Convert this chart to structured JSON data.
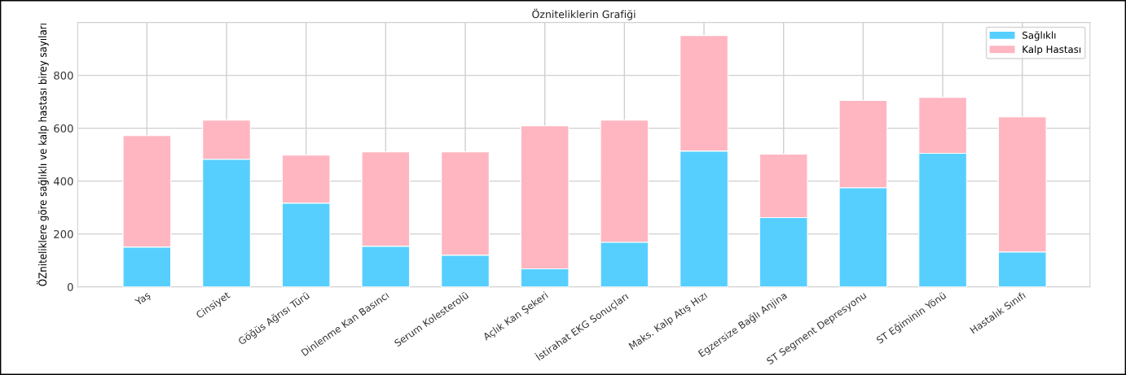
{
  "chart_data": {
    "type": "bar",
    "title": "Özniteliklerin Grafiği",
    "ylabel": "ÖZniteliklere göre sağlıklı ve kalp hastası birey sayıları",
    "categories": [
      "Yaş",
      "Cinsiyet",
      "Göğüs Ağrısı Türü",
      "Dinlenme Kan Basıncı",
      "Serum Kolesterolü",
      "Açlık Kan Şekeri",
      "İstirahat EKG Sonuçları",
      "Maks. Kalp Atış Hızı",
      "Egzersize Bağlı Anjina",
      "ST Segment Depresyonu",
      "ST Eğiminin Yönü",
      "Hastalık Sınıfı"
    ],
    "series": [
      {
        "name": "Sağlıklı",
        "color": "#56cfff",
        "values": [
          151,
          483,
          317,
          154,
          120,
          68,
          169,
          514,
          262,
          375,
          505,
          132
        ]
      },
      {
        "name": "Kalp Hastası",
        "color": "#ffb6c1",
        "values": [
          421,
          148,
          181,
          357,
          391,
          541,
          462,
          437,
          240,
          330,
          212,
          511
        ]
      }
    ],
    "stacked": true,
    "ylim": [
      0,
      1000
    ],
    "yticks": [
      0,
      200,
      400,
      600,
      800
    ],
    "grid": true,
    "legend": "top right"
  }
}
